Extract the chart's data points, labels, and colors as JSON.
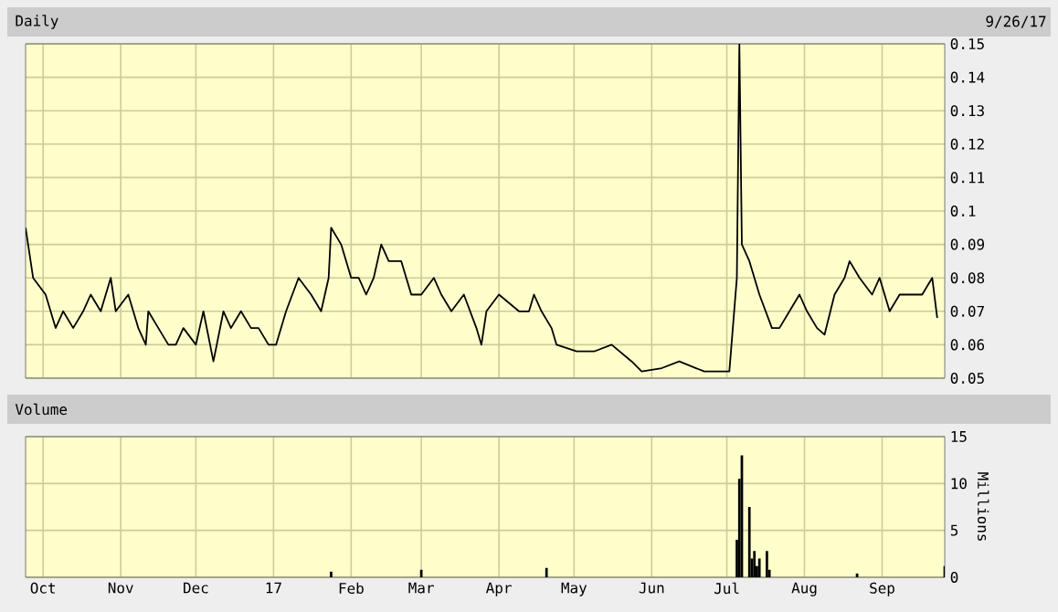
{
  "chart_data": [
    {
      "type": "line",
      "title": "Daily",
      "annotations": [
        "9/26/17"
      ],
      "x": [
        "2016-09-24",
        "2016-09-27",
        "2016-10-02",
        "2016-10-06",
        "2016-10-09",
        "2016-10-13",
        "2016-10-17",
        "2016-10-20",
        "2016-10-24",
        "2016-10-28",
        "2016-10-30",
        "2016-11-04",
        "2016-11-08",
        "2016-11-11",
        "2016-11-12",
        "2016-11-16",
        "2016-11-20",
        "2016-11-23",
        "2016-11-26",
        "2016-12-01",
        "2016-12-04",
        "2016-12-08",
        "2016-12-12",
        "2016-12-15",
        "2016-12-19",
        "2016-12-23",
        "2016-12-26",
        "2016-12-30",
        "2017-01-02",
        "2017-01-06",
        "2017-01-11",
        "2017-01-16",
        "2017-01-20",
        "2017-01-23",
        "2017-01-24",
        "2017-01-28",
        "2017-02-01",
        "2017-02-04",
        "2017-02-07",
        "2017-02-10",
        "2017-02-13",
        "2017-02-16",
        "2017-02-21",
        "2017-02-25",
        "2017-03-01",
        "2017-03-06",
        "2017-03-09",
        "2017-03-13",
        "2017-03-18",
        "2017-03-23",
        "2017-03-25",
        "2017-03-27",
        "2017-04-01",
        "2017-04-09",
        "2017-04-13",
        "2017-04-15",
        "2017-04-18",
        "2017-04-22",
        "2017-04-24",
        "2017-05-02",
        "2017-05-09",
        "2017-05-16",
        "2017-05-24",
        "2017-05-28",
        "2017-06-05",
        "2017-06-12",
        "2017-06-22",
        "2017-07-02",
        "2017-07-05",
        "2017-07-06",
        "2017-07-07",
        "2017-07-10",
        "2017-07-14",
        "2017-07-19",
        "2017-07-22",
        "2017-07-26",
        "2017-07-30",
        "2017-08-02",
        "2017-08-06",
        "2017-08-09",
        "2017-08-13",
        "2017-08-17",
        "2017-08-19",
        "2017-08-23",
        "2017-08-28",
        "2017-08-31",
        "2017-09-04",
        "2017-09-08",
        "2017-09-13",
        "2017-09-17",
        "2017-09-21",
        "2017-09-23"
      ],
      "series": [
        {
          "color": "#000000",
          "values": [
            0.095,
            0.08,
            0.075,
            0.065,
            0.07,
            0.065,
            0.07,
            0.075,
            0.07,
            0.08,
            0.07,
            0.075,
            0.065,
            0.06,
            0.07,
            0.065,
            0.06,
            0.06,
            0.065,
            0.06,
            0.07,
            0.055,
            0.07,
            0.065,
            0.07,
            0.065,
            0.065,
            0.06,
            0.06,
            0.07,
            0.08,
            0.075,
            0.07,
            0.08,
            0.095,
            0.09,
            0.08,
            0.08,
            0.075,
            0.08,
            0.09,
            0.085,
            0.085,
            0.075,
            0.075,
            0.08,
            0.075,
            0.07,
            0.075,
            0.065,
            0.06,
            0.07,
            0.075,
            0.07,
            0.07,
            0.075,
            0.07,
            0.065,
            0.06,
            0.058,
            0.058,
            0.06,
            0.055,
            0.052,
            0.053,
            0.055,
            0.052,
            0.052,
            0.08,
            0.15,
            0.09,
            0.085,
            0.075,
            0.065,
            0.065,
            0.07,
            0.075,
            0.07,
            0.065,
            0.063,
            0.075,
            0.08,
            0.085,
            0.08,
            0.075,
            0.08,
            0.07,
            0.075,
            0.075,
            0.075,
            0.08,
            0.068
          ]
        }
      ],
      "xlim": [
        "2016-09-24",
        "2017-09-26"
      ],
      "xticks": [
        {
          "value": "2016-10-01",
          "label": null
        },
        {
          "value": "2016-11-01",
          "label": null
        },
        {
          "value": "2016-12-01",
          "label": null
        },
        {
          "value": "2017-01-01",
          "label": null
        },
        {
          "value": "2017-02-01",
          "label": null
        },
        {
          "value": "2017-03-01",
          "label": null
        },
        {
          "value": "2017-04-01",
          "label": null
        },
        {
          "value": "2017-05-01",
          "label": null
        },
        {
          "value": "2017-06-01",
          "label": null
        },
        {
          "value": "2017-07-01",
          "label": null
        },
        {
          "value": "2017-08-01",
          "label": null
        },
        {
          "value": "2017-09-01",
          "label": null
        }
      ],
      "ylim": [
        0.05,
        0.15
      ],
      "yticks": [
        0.05,
        0.06,
        0.07,
        0.08,
        0.09,
        0.1,
        0.11,
        0.12,
        0.13,
        0.14,
        0.15
      ],
      "grid": true,
      "tick_labels": "y"
    },
    {
      "type": "bar",
      "title": "Volume",
      "ylabel": "Millions",
      "x": [
        "2017-01-24",
        "2017-03-01",
        "2017-04-20",
        "2017-07-05",
        "2017-07-06",
        "2017-07-07",
        "2017-07-10",
        "2017-07-11",
        "2017-07-12",
        "2017-07-13",
        "2017-07-14",
        "2017-07-17",
        "2017-07-18",
        "2017-08-22",
        "2017-09-26"
      ],
      "series": [
        {
          "color": "#000000",
          "values": [
            0.6,
            0.8,
            1,
            4,
            10.5,
            13,
            7.5,
            2,
            2.8,
            1.2,
            2,
            2.8,
            0.8,
            0.4,
            1.2
          ]
        }
      ],
      "xlim": [
        "2016-09-24",
        "2017-09-26"
      ],
      "xticks": [
        {
          "value": "2016-10-01",
          "label": "Oct"
        },
        {
          "value": "2016-11-01",
          "label": "Nov"
        },
        {
          "value": "2016-12-01",
          "label": "Dec"
        },
        {
          "value": "2017-01-01",
          "label": "17"
        },
        {
          "value": "2017-02-01",
          "label": "Feb"
        },
        {
          "value": "2017-03-01",
          "label": "Mar"
        },
        {
          "value": "2017-04-01",
          "label": "Apr"
        },
        {
          "value": "2017-05-01",
          "label": "May"
        },
        {
          "value": "2017-06-01",
          "label": "Jun"
        },
        {
          "value": "2017-07-01",
          "label": "Jul"
        },
        {
          "value": "2017-08-01",
          "label": "Aug"
        },
        {
          "value": "2017-09-01",
          "label": "Sep"
        }
      ],
      "ylim": [
        0,
        15
      ],
      "yticks": [
        0,
        5,
        10,
        15
      ],
      "grid": true
    }
  ]
}
